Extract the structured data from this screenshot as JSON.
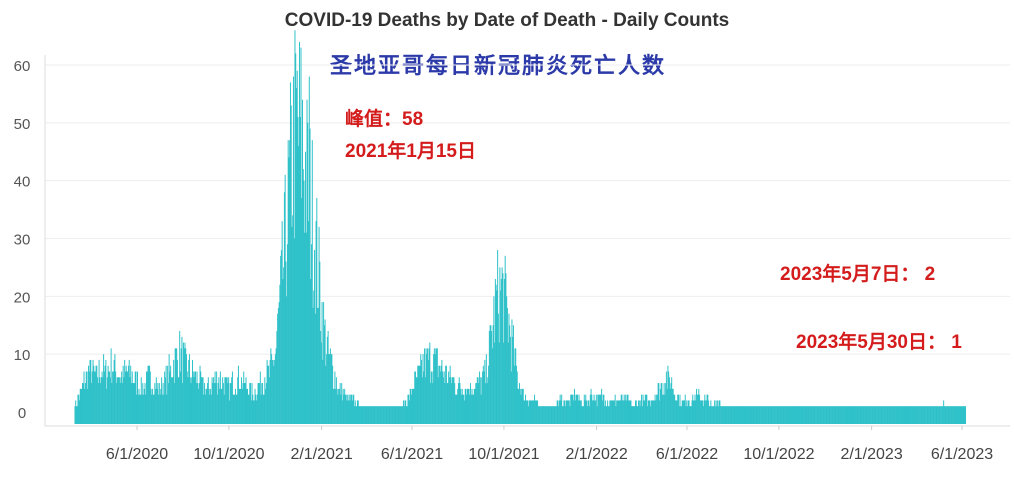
{
  "chart_data": {
    "type": "bar",
    "title": "COVID-19  Deaths by Date of Death - Daily Counts",
    "subtitle": "圣地亚哥每日新冠肺炎死亡人数",
    "bar_color": "#2fc1c9",
    "ylim": [
      0,
      62
    ],
    "yticks": [
      "60",
      "50",
      "40",
      "30",
      "20",
      "10",
      "0"
    ],
    "xticks": [
      "6/1/2020",
      "10/1/2020",
      "2/1/2021",
      "6/1/2021",
      "10/1/2021",
      "2/1/2022",
      "6/1/2022",
      "10/1/2022",
      "2/1/2023",
      "6/1/2023"
    ],
    "grid": true,
    "series_weekly_approx": {
      "start": "3/10/2020",
      "end": "6/5/2023",
      "values": [
        1,
        3,
        6,
        7,
        6,
        7,
        7,
        8,
        7,
        6,
        7,
        6,
        5,
        4,
        6,
        5,
        4,
        5,
        7,
        9,
        10,
        8,
        7,
        6,
        5,
        4,
        5,
        6,
        5,
        4,
        5,
        6,
        5,
        4,
        3,
        5,
        6,
        7,
        10,
        20,
        30,
        42,
        50,
        47,
        40,
        34,
        26,
        16,
        10,
        7,
        4,
        3,
        2,
        2,
        1,
        1,
        1,
        1,
        1,
        1,
        1,
        1,
        1,
        2,
        4,
        6,
        8,
        9,
        9,
        8,
        7,
        6,
        5,
        4,
        4,
        4,
        5,
        5,
        7,
        13,
        20,
        21,
        17,
        11,
        6,
        3,
        2,
        2,
        1,
        1,
        1,
        1,
        2,
        2,
        2,
        3,
        2,
        2,
        3,
        2,
        3,
        2,
        2,
        2,
        2,
        2,
        1,
        2,
        2,
        2,
        3,
        4,
        6,
        5,
        3,
        2,
        2,
        2,
        3,
        2,
        2,
        1,
        2,
        1,
        1,
        1,
        1,
        1,
        1,
        1,
        1,
        1,
        1,
        1,
        1,
        1,
        1,
        1,
        1
      ]
    },
    "annotations": {
      "peak_label": "峰值：58",
      "peak_date": "2021年1月15日",
      "may7": "2023年5月7日： 2",
      "may30": "2023年5月30日： 1"
    }
  }
}
